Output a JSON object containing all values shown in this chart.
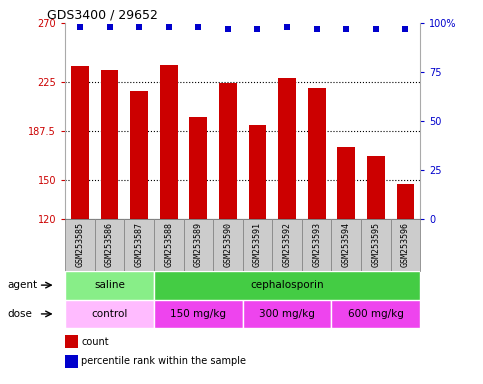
{
  "title": "GDS3400 / 29652",
  "samples": [
    "GSM253585",
    "GSM253586",
    "GSM253587",
    "GSM253588",
    "GSM253589",
    "GSM253590",
    "GSM253591",
    "GSM253592",
    "GSM253593",
    "GSM253594",
    "GSM253595",
    "GSM253596"
  ],
  "bar_values": [
    237,
    234,
    218,
    238,
    198,
    224,
    192,
    228,
    220,
    175,
    168,
    147
  ],
  "percentile_values": [
    98,
    98,
    98,
    98,
    98,
    97,
    97,
    98,
    97,
    97,
    97,
    97
  ],
  "bar_color": "#cc0000",
  "dot_color": "#0000cc",
  "ylim_left": [
    120,
    270
  ],
  "ylim_right": [
    0,
    100
  ],
  "yticks_left": [
    120,
    150,
    187.5,
    225,
    270
  ],
  "yticks_right": [
    0,
    25,
    50,
    75,
    100
  ],
  "ytick_labels_left": [
    "120",
    "150",
    "187.5",
    "225",
    "270"
  ],
  "ytick_labels_right": [
    "0",
    "25",
    "50",
    "75",
    "100%"
  ],
  "agent_groups": [
    {
      "label": "saline",
      "start": 0,
      "end": 3,
      "color": "#88ee88"
    },
    {
      "label": "cephalosporin",
      "start": 3,
      "end": 12,
      "color": "#44cc44"
    }
  ],
  "dose_groups": [
    {
      "label": "control",
      "start": 0,
      "end": 3,
      "color": "#ffbbff"
    },
    {
      "label": "150 mg/kg",
      "start": 3,
      "end": 6,
      "color": "#ee44ee"
    },
    {
      "label": "300 mg/kg",
      "start": 6,
      "end": 9,
      "color": "#ee44ee"
    },
    {
      "label": "600 mg/kg",
      "start": 9,
      "end": 12,
      "color": "#ee44ee"
    }
  ],
  "legend_items": [
    {
      "label": "count",
      "color": "#cc0000"
    },
    {
      "label": "percentile rank within the sample",
      "color": "#0000cc"
    }
  ],
  "tick_label_color_left": "#cc0000",
  "tick_label_color_right": "#0000cc",
  "sample_box_color": "#cccccc",
  "sample_box_edge": "#888888",
  "hgrid_lines": [
    150,
    187.5,
    225
  ]
}
